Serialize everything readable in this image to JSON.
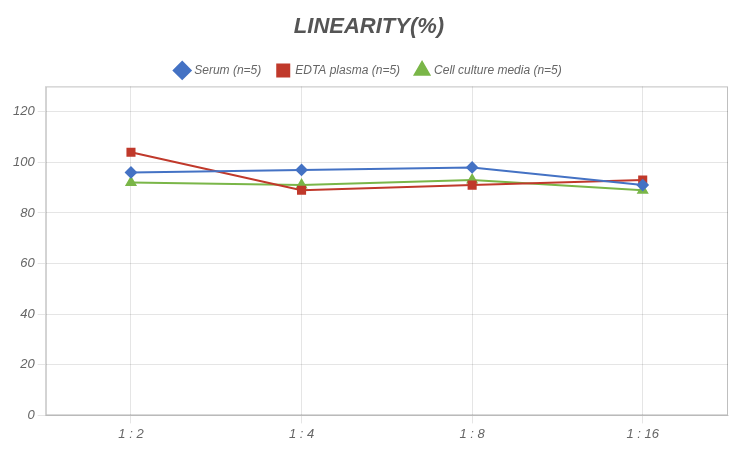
{
  "chart_data": {
    "type": "line",
    "title": "LINEARITY(%)",
    "categories": [
      "1 : 2",
      "1 : 4",
      "1 : 8",
      "1 : 16"
    ],
    "series": [
      {
        "name": "Serum (n=5)",
        "color": "#4472C4",
        "marker": "diamond",
        "values": [
          96,
          97,
          98,
          91
        ]
      },
      {
        "name": "EDTA plasma (n=5)",
        "color": "#C0392B",
        "marker": "square",
        "values": [
          104,
          89,
          91,
          93
        ]
      },
      {
        "name": "Cell culture media (n=5)",
        "color": "#7AB648",
        "marker": "triangle",
        "values": [
          92,
          91,
          93,
          89
        ]
      }
    ],
    "ylim": [
      0,
      130
    ],
    "yticks": [
      0,
      20,
      40,
      60,
      80,
      100,
      120
    ],
    "grid": true,
    "legend": "top"
  }
}
